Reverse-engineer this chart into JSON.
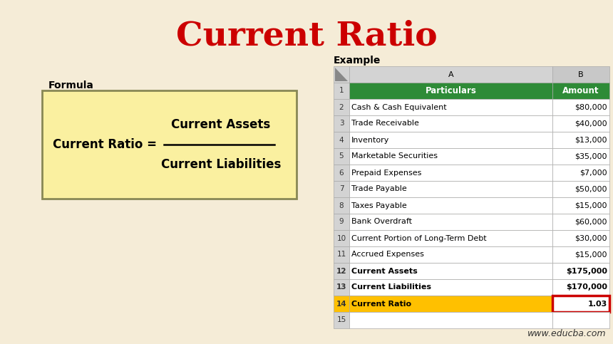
{
  "title": "Current Ratio",
  "title_color": "#CC0000",
  "title_fontsize": 34,
  "bg_color": "#F5ECD7",
  "formula_label": "Formula",
  "formula_numerator": "Current Assets",
  "formula_denominator": "Current Liabilities",
  "formula_box_color": "#FAF0A0",
  "formula_box_edge": "#888855",
  "example_label": "Example",
  "watermark": "www.educba.com",
  "header_row": [
    "Particulars",
    "Amount"
  ],
  "header_bg": "#2E8B37",
  "header_text_color": "#FFFFFF",
  "rows": [
    [
      "Cash & Cash Equivalent",
      "$80,000"
    ],
    [
      "Trade Receivable",
      "$40,000"
    ],
    [
      "Inventory",
      "$13,000"
    ],
    [
      "Marketable Securities",
      "$35,000"
    ],
    [
      "Prepaid Expenses",
      "$7,000"
    ],
    [
      "Trade Payable",
      "$50,000"
    ],
    [
      "Taxes Payable",
      "$15,000"
    ],
    [
      "Bank Overdraft",
      "$60,000"
    ],
    [
      "Current Portion of Long-Term Debt",
      "$30,000"
    ],
    [
      "Accrued Expenses",
      "$15,000"
    ],
    [
      "Current Assets",
      "$175,000"
    ],
    [
      "Current Liabilities",
      "$170,000"
    ],
    [
      "Current Ratio",
      "1.03"
    ]
  ],
  "row_numbers": [
    2,
    3,
    4,
    5,
    6,
    7,
    8,
    9,
    10,
    11,
    12,
    13,
    14
  ],
  "bold_rows": [
    12,
    13,
    14
  ],
  "ratio_row_bg": "#FFC000",
  "ratio_result_border": "#CC0000",
  "normal_row_bg": "#FFFFFF",
  "grid_color": "#AAAAAA",
  "row_header_bg": "#D3D3D3",
  "col_header_bg": "#D3D3D3"
}
